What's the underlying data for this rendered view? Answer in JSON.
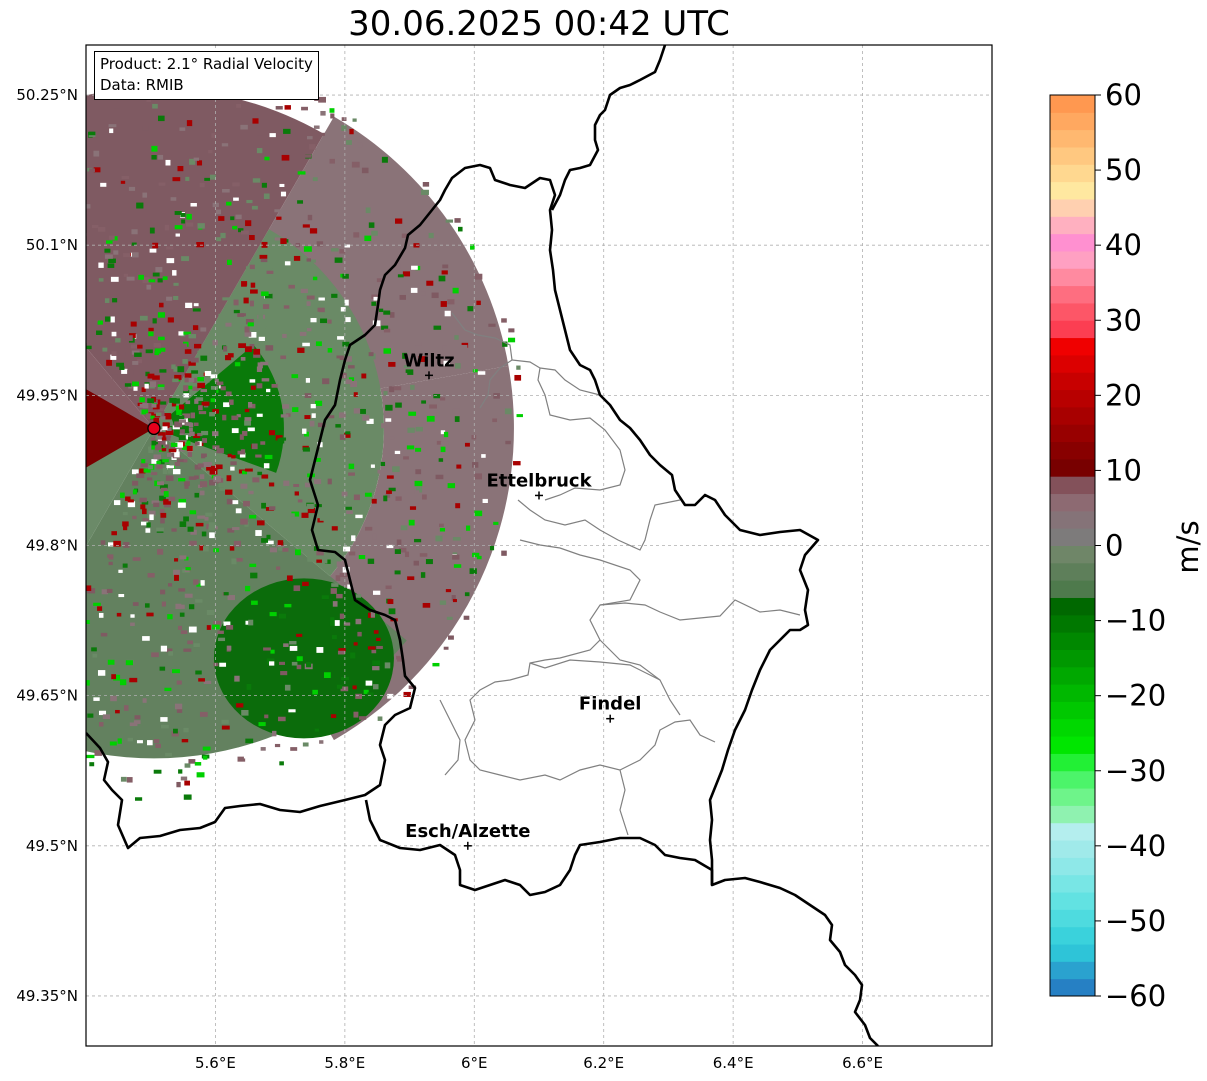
{
  "title": "30.06.2025 00:42 UTC",
  "info": {
    "product": "Product: 2.1° Radial Velocity",
    "data": "Data: RMIB"
  },
  "map": {
    "lon_range": [
      5.4,
      6.8
    ],
    "lat_range": [
      49.3,
      50.3
    ],
    "lon_ticks": [
      {
        "value": 5.6,
        "label": "5.6°E"
      },
      {
        "value": 5.8,
        "label": "5.8°E"
      },
      {
        "value": 6.0,
        "label": "6°E"
      },
      {
        "value": 6.2,
        "label": "6.2°E"
      },
      {
        "value": 6.4,
        "label": "6.4°E"
      },
      {
        "value": 6.6,
        "label": "6.6°E"
      }
    ],
    "lat_ticks": [
      {
        "value": 50.25,
        "label": "50.25°N"
      },
      {
        "value": 50.1,
        "label": "50.1°N"
      },
      {
        "value": 49.95,
        "label": "49.95°N"
      },
      {
        "value": 49.8,
        "label": "49.8°N"
      },
      {
        "value": 49.65,
        "label": "49.65°N"
      },
      {
        "value": 49.5,
        "label": "49.5°N"
      },
      {
        "value": 49.35,
        "label": "49.35°N"
      }
    ],
    "cities": [
      {
        "name": "Wiltz",
        "lon": 5.93,
        "lat": 49.97
      },
      {
        "name": "Ettelbruck",
        "lon": 6.1,
        "lat": 49.85
      },
      {
        "name": "Findel",
        "lon": 6.21,
        "lat": 49.627
      },
      {
        "name": "Esch/Alzette",
        "lon": 5.99,
        "lat": 49.5
      }
    ],
    "radar_site": {
      "lon": 5.505,
      "lat": 49.917,
      "color": "#e8001c"
    }
  },
  "colorbar": {
    "label": "m/s",
    "range": [
      -60,
      60
    ],
    "tick_labels": [
      "60",
      "50",
      "40",
      "30",
      "20",
      "10",
      "0",
      "−10",
      "−20",
      "−30",
      "−40",
      "−50",
      "−60"
    ],
    "colors": [
      "#2680c4",
      "#2aa2cf",
      "#2ec4d8",
      "#3ad2dc",
      "#4edbdf",
      "#62e2e2",
      "#78e6e5",
      "#8ee8e8",
      "#a0eaea",
      "#b4eeee",
      "#8ff2b0",
      "#6ef48a",
      "#4cf46a",
      "#22f035",
      "#00e600",
      "#00d800",
      "#00c800",
      "#00b800",
      "#00a800",
      "#009800",
      "#008800",
      "#007800",
      "#006800",
      "#4e7a4c",
      "#5e7f5a",
      "#6f8668",
      "#7d7b7b",
      "#857378",
      "#8d6a72",
      "#83515a",
      "#780000",
      "#880000",
      "#980000",
      "#a80000",
      "#b80000",
      "#c80000",
      "#dc0000",
      "#f00000",
      "#fc3e52",
      "#fd5667",
      "#fe6e80",
      "#ff8aa0",
      "#ffa0c2",
      "#ff90d0",
      "#ffb0c0",
      "#ffd0b0",
      "#ffe8a0",
      "#ffd890",
      "#ffc880",
      "#ffb870",
      "#ffa860",
      "#ff9850"
    ]
  }
}
